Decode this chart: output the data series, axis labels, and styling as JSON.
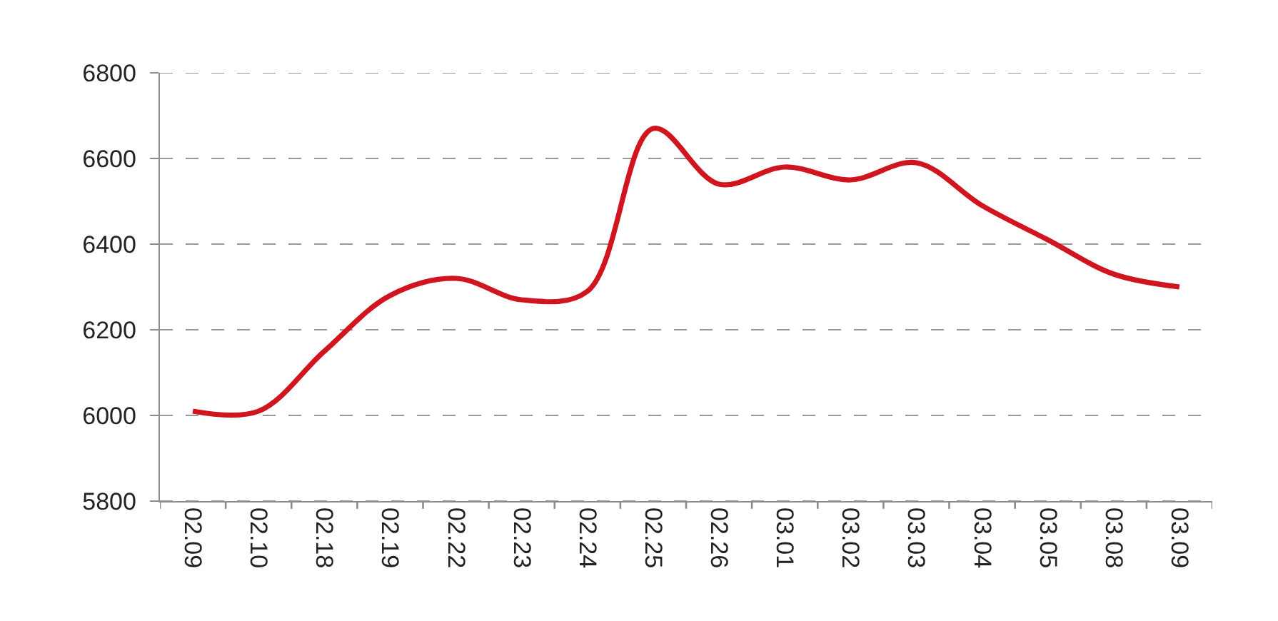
{
  "chart_data": {
    "type": "line",
    "categories": [
      "02.09",
      "02.10",
      "02.18",
      "02.19",
      "02.22",
      "02.23",
      "02.24",
      "02.25",
      "02.26",
      "03.01",
      "03.02",
      "03.03",
      "03.04",
      "03.05",
      "03.08",
      "03.09"
    ],
    "series": [
      {
        "color": "#d0151e",
        "values": [
          6010,
          6010,
          6150,
          6280,
          6320,
          6270,
          6290,
          6670,
          6540,
          6580,
          6550,
          6590,
          6490,
          6410,
          6330,
          6300
        ]
      }
    ],
    "ylim": [
      5800,
      6800
    ],
    "yticks": [
      5800,
      6000,
      6200,
      6400,
      6600,
      6800
    ],
    "grid": "y",
    "line_style": "solid"
  }
}
